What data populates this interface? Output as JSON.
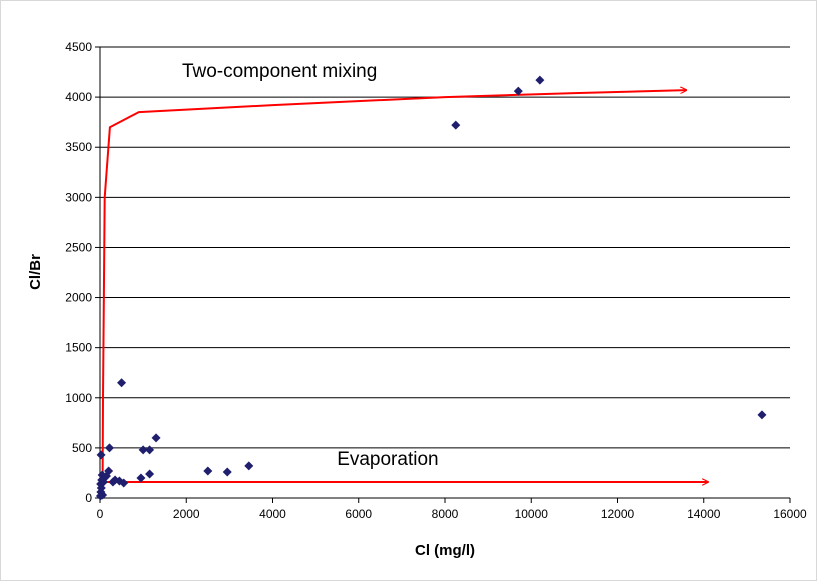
{
  "chart_data": {
    "type": "scatter",
    "title": "",
    "xlabel": "Cl (mg/l)",
    "ylabel": "Cl/Br",
    "xlim": [
      0,
      16000
    ],
    "ylim": [
      0,
      4500
    ],
    "x_ticks": [
      0,
      2000,
      4000,
      6000,
      8000,
      10000,
      12000,
      14000,
      16000
    ],
    "y_ticks": [
      0,
      500,
      1000,
      1500,
      2000,
      2500,
      3000,
      3500,
      4000,
      4500
    ],
    "grid": "horizontal",
    "legend": "none",
    "marker": "diamond",
    "series_color": "#1f1f6e",
    "arrow_color": "#ff0000",
    "points": [
      {
        "x": 10,
        "y": 20
      },
      {
        "x": 20,
        "y": 60
      },
      {
        "x": 30,
        "y": 100
      },
      {
        "x": 15,
        "y": 140
      },
      {
        "x": 40,
        "y": 180
      },
      {
        "x": 50,
        "y": 230
      },
      {
        "x": 25,
        "y": 430
      },
      {
        "x": 60,
        "y": 30
      },
      {
        "x": 80,
        "y": 160
      },
      {
        "x": 100,
        "y": 200
      },
      {
        "x": 150,
        "y": 220
      },
      {
        "x": 200,
        "y": 270
      },
      {
        "x": 220,
        "y": 500
      },
      {
        "x": 300,
        "y": 160
      },
      {
        "x": 350,
        "y": 180
      },
      {
        "x": 450,
        "y": 170
      },
      {
        "x": 500,
        "y": 1150
      },
      {
        "x": 550,
        "y": 150
      },
      {
        "x": 950,
        "y": 200
      },
      {
        "x": 1000,
        "y": 480
      },
      {
        "x": 1150,
        "y": 240
      },
      {
        "x": 1150,
        "y": 480
      },
      {
        "x": 1300,
        "y": 600
      },
      {
        "x": 2500,
        "y": 270
      },
      {
        "x": 2950,
        "y": 260
      },
      {
        "x": 3450,
        "y": 320
      },
      {
        "x": 8250,
        "y": 3720
      },
      {
        "x": 9700,
        "y": 4060
      },
      {
        "x": 10200,
        "y": 4170
      },
      {
        "x": 15350,
        "y": 830
      }
    ],
    "annotations": [
      {
        "text": "Two-component mixing",
        "x": 1900,
        "y": 4200
      },
      {
        "text": "Evaporation",
        "x": 5500,
        "y": 330
      }
    ],
    "curves": [
      {
        "name": "mixing-arrow",
        "points": [
          [
            60,
            160
          ],
          [
            70,
            1000
          ],
          [
            110,
            3000
          ],
          [
            230,
            3700
          ],
          [
            900,
            3850
          ],
          [
            4000,
            3920
          ],
          [
            8000,
            4000
          ],
          [
            11000,
            4040
          ],
          [
            13600,
            4070
          ]
        ]
      },
      {
        "name": "evaporation-arrow",
        "points": [
          [
            60,
            200
          ],
          [
            60,
            160
          ],
          [
            14100,
            160
          ]
        ]
      }
    ]
  }
}
